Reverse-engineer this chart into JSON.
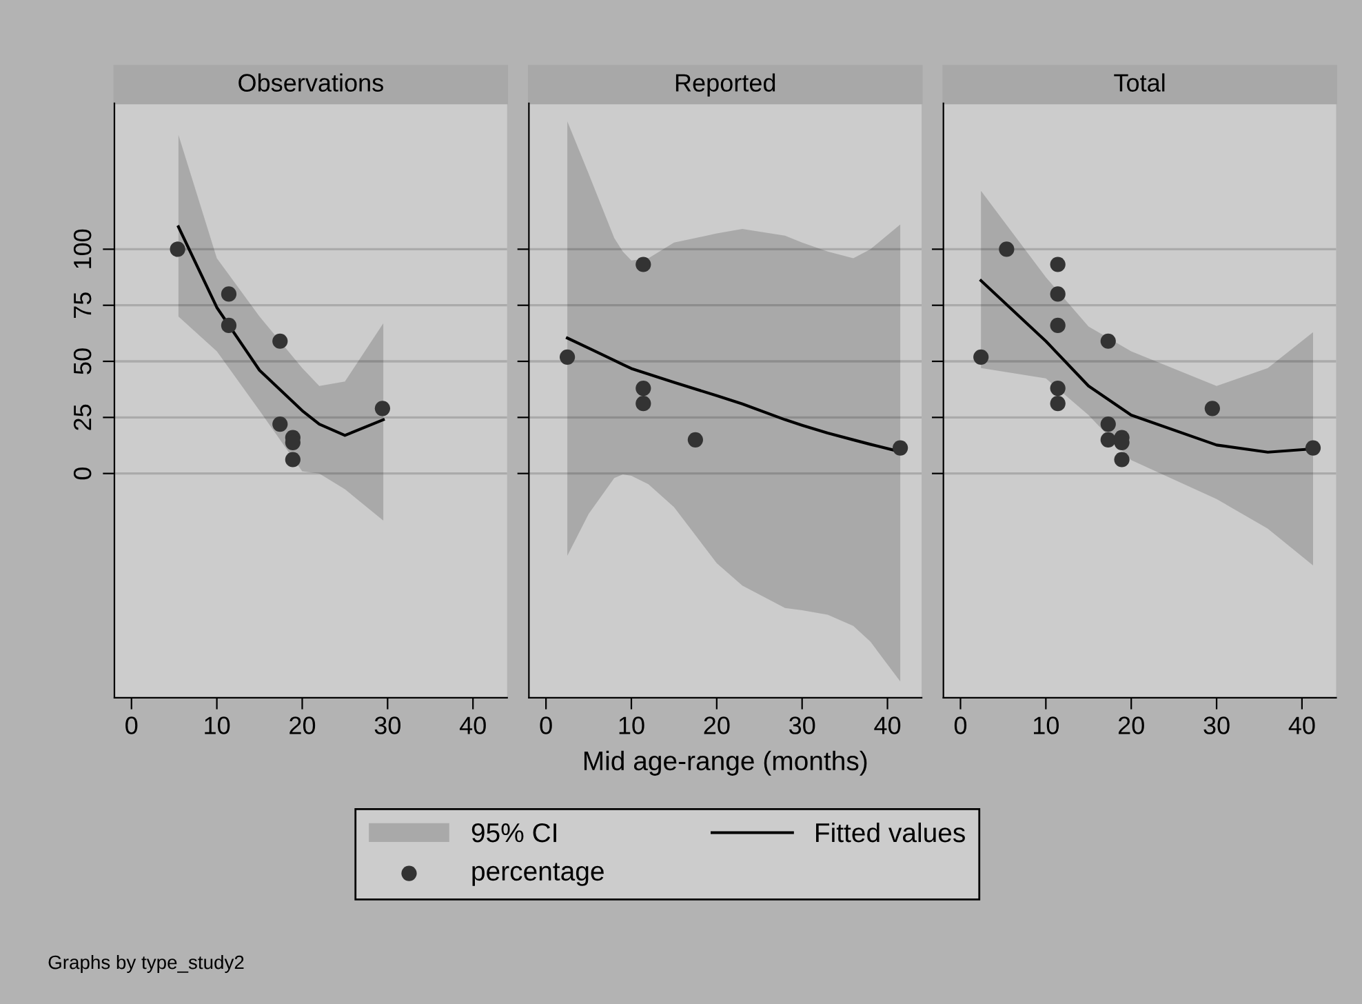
{
  "chart_data": [
    {
      "type": "scatter",
      "title": "Observations",
      "xlim": [
        -2,
        44
      ],
      "xticks": [
        0,
        10,
        20,
        30,
        40
      ],
      "ylim": [
        -100,
        165
      ],
      "yticks": [
        0,
        25,
        50,
        75,
        100
      ],
      "grid": "y",
      "legend": "bottom",
      "annotations": [
        "95% CI"
      ],
      "series": [
        {
          "name": "Fitted values",
          "type": "line",
          "color": "#000000",
          "x": [
            5.5,
            10,
            15,
            20,
            22,
            25,
            29.5
          ],
          "values": [
            110,
            74,
            46,
            28,
            22,
            17,
            24
          ],
          "lower": [
            70,
            54.5,
            28,
            1,
            0,
            -7,
            -21
          ],
          "upper": [
            151,
            96,
            70,
            47,
            39,
            41,
            67
          ]
        },
        {
          "name": "percentage",
          "color": "#333333",
          "marker": "circle",
          "x": [
            5.4,
            11.4,
            11.4,
            17.4,
            17.4,
            18.9,
            18.9,
            18.9,
            29.4
          ],
          "values": [
            100,
            80,
            66,
            59,
            22,
            16,
            13.8,
            6.2,
            29
          ]
        }
      ]
    },
    {
      "type": "scatter",
      "title": "Reported",
      "xlabel": "Mid age-range (months)",
      "xlim": [
        -2,
        44
      ],
      "xticks": [
        0,
        10,
        20,
        30,
        40
      ],
      "ylim": [
        -100,
        165
      ],
      "yticks": [
        0,
        25,
        50,
        75,
        100
      ],
      "grid": "y",
      "tick_labels": "x",
      "series": [
        {
          "type": "line",
          "color": "#000000",
          "x": [
            2.5,
            5,
            8,
            9,
            10,
            12,
            15,
            20,
            23,
            28,
            30,
            33,
            36,
            38,
            41.5
          ],
          "values": [
            60.4,
            55.9,
            50.4,
            48.6,
            46.8,
            44.3,
            40.6,
            34.7,
            31,
            24,
            21.5,
            18,
            15,
            13,
            9.7
          ],
          "lower": [
            -36.7,
            -18,
            -2,
            -0.4,
            -1,
            -4.8,
            -15,
            -40,
            -50,
            -60,
            -61,
            -63,
            -68,
            -75,
            -92.7
          ],
          "upper": [
            157,
            133.6,
            105,
            99,
            95,
            96,
            103,
            107,
            109,
            106,
            103,
            99,
            96,
            100,
            111
          ]
        },
        {
          "color": "#333333",
          "marker": "circle",
          "x": [
            2.5,
            11.4,
            11.4,
            11.4,
            17.5,
            41.5
          ],
          "values": [
            51.9,
            93.2,
            38,
            31.2,
            15,
            11.4
          ]
        }
      ]
    },
    {
      "type": "scatter",
      "title": "Total",
      "xlim": [
        -2,
        44
      ],
      "xticks": [
        0,
        10,
        20,
        30,
        40
      ],
      "ylim": [
        -100,
        165
      ],
      "yticks": [
        0,
        25,
        50,
        75,
        100
      ],
      "grid": "y",
      "tick_labels": "x",
      "annotations": [
        "Graphs by type_study2"
      ],
      "series": [
        {
          "type": "line",
          "color": "#000000",
          "x": [
            2.4,
            10,
            15,
            20,
            30,
            36,
            41.3
          ],
          "values": [
            86,
            59,
            39,
            26,
            12.7,
            9.5,
            11
          ],
          "lower": [
            47,
            42.4,
            26,
            6,
            -11.4,
            -24.6,
            -41
          ],
          "upper": [
            126,
            87.5,
            65.5,
            54.5,
            39,
            47,
            63
          ]
        },
        {
          "color": "#333333",
          "marker": "circle",
          "x": [
            5.4,
            11.4,
            11.4,
            11.4,
            17.3,
            2.4,
            11.4,
            11.4,
            17.3,
            17.3,
            18.9,
            18.9,
            18.9,
            29.5,
            41.3
          ],
          "values": [
            100,
            93.2,
            80,
            66,
            59,
            51.9,
            38,
            31.2,
            22,
            15,
            16,
            13.8,
            6.2,
            29,
            11.4
          ]
        }
      ]
    }
  ]
}
